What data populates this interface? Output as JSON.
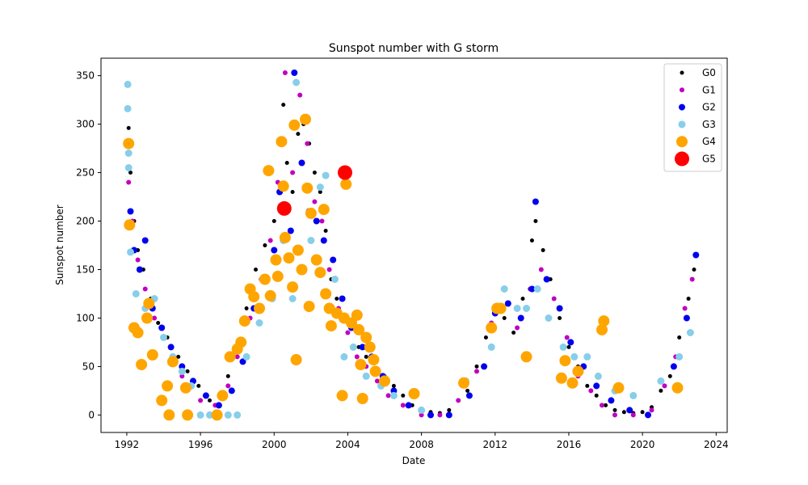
{
  "chart_data": {
    "type": "scatter",
    "title": "Sunspot number with G storm",
    "xlabel": "Date",
    "ylabel": "Sunspot number",
    "xlim": [
      1990.6,
      2024.6
    ],
    "ylim": [
      -18,
      368
    ],
    "x_ticks": [
      "1992",
      "1996",
      "2000",
      "2004",
      "2008",
      "2012",
      "2016",
      "2020",
      "2024"
    ],
    "y_ticks": [
      "0",
      "50",
      "100",
      "150",
      "200",
      "250",
      "300",
      "350"
    ],
    "grid": false,
    "legend_position": "top-right",
    "series": [
      {
        "name": "G0",
        "color": "#000000",
        "marker_size": 2.5,
        "points": [
          [
            1992.1,
            296
          ],
          [
            1992.2,
            250
          ],
          [
            1992.4,
            200
          ],
          [
            1992.6,
            170
          ],
          [
            1992.9,
            150
          ],
          [
            1993.3,
            120
          ],
          [
            1993.7,
            95
          ],
          [
            1994.2,
            80
          ],
          [
            1994.8,
            60
          ],
          [
            1995.3,
            45
          ],
          [
            1995.9,
            30
          ],
          [
            1996.5,
            15
          ],
          [
            1997.0,
            20
          ],
          [
            1997.5,
            40
          ],
          [
            1998.0,
            70
          ],
          [
            1998.5,
            110
          ],
          [
            1999.0,
            150
          ],
          [
            1999.5,
            175
          ],
          [
            2000.0,
            200
          ],
          [
            2000.3,
            280
          ],
          [
            2000.5,
            320
          ],
          [
            2000.7,
            260
          ],
          [
            2001.0,
            230
          ],
          [
            2001.3,
            290
          ],
          [
            2001.6,
            300
          ],
          [
            2001.9,
            280
          ],
          [
            2002.2,
            250
          ],
          [
            2002.5,
            230
          ],
          [
            2002.8,
            190
          ],
          [
            2003.1,
            140
          ],
          [
            2003.4,
            120
          ],
          [
            2003.8,
            100
          ],
          [
            2004.2,
            90
          ],
          [
            2004.6,
            70
          ],
          [
            2005.0,
            60
          ],
          [
            2005.5,
            45
          ],
          [
            2006.0,
            40
          ],
          [
            2006.5,
            30
          ],
          [
            2007.0,
            20
          ],
          [
            2007.5,
            10
          ],
          [
            2008.0,
            5
          ],
          [
            2008.5,
            3
          ],
          [
            2009.0,
            2
          ],
          [
            2009.5,
            5
          ],
          [
            2010.0,
            15
          ],
          [
            2010.5,
            25
          ],
          [
            2011.0,
            50
          ],
          [
            2011.5,
            80
          ],
          [
            2012.0,
            110
          ],
          [
            2012.5,
            100
          ],
          [
            2013.0,
            85
          ],
          [
            2013.5,
            120
          ],
          [
            2014.0,
            180
          ],
          [
            2014.2,
            200
          ],
          [
            2014.6,
            170
          ],
          [
            2015.0,
            140
          ],
          [
            2015.5,
            100
          ],
          [
            2016.0,
            70
          ],
          [
            2016.5,
            50
          ],
          [
            2017.0,
            30
          ],
          [
            2017.5,
            20
          ],
          [
            2018.0,
            10
          ],
          [
            2018.5,
            5
          ],
          [
            2019.0,
            3
          ],
          [
            2019.5,
            2
          ],
          [
            2020.0,
            3
          ],
          [
            2020.5,
            8
          ],
          [
            2021.0,
            25
          ],
          [
            2021.5,
            40
          ],
          [
            2022.0,
            80
          ],
          [
            2022.5,
            120
          ],
          [
            2022.8,
            150
          ]
        ]
      },
      {
        "name": "G1",
        "color": "#c000c0",
        "marker_size": 3,
        "points": [
          [
            1992.1,
            240
          ],
          [
            1992.3,
            200
          ],
          [
            1992.6,
            160
          ],
          [
            1993.0,
            130
          ],
          [
            1993.5,
            100
          ],
          [
            1994.0,
            80
          ],
          [
            1994.5,
            60
          ],
          [
            1995.0,
            40
          ],
          [
            1995.5,
            30
          ],
          [
            1996.0,
            15
          ],
          [
            1996.8,
            10
          ],
          [
            1997.5,
            30
          ],
          [
            1998.0,
            60
          ],
          [
            1998.7,
            100
          ],
          [
            1999.3,
            140
          ],
          [
            1999.8,
            180
          ],
          [
            2000.2,
            240
          ],
          [
            2000.6,
            353
          ],
          [
            2001.0,
            250
          ],
          [
            2001.4,
            330
          ],
          [
            2001.8,
            280
          ],
          [
            2002.2,
            220
          ],
          [
            2002.6,
            200
          ],
          [
            2003.0,
            150
          ],
          [
            2003.5,
            110
          ],
          [
            2004.0,
            85
          ],
          [
            2004.5,
            60
          ],
          [
            2005.0,
            50
          ],
          [
            2005.6,
            35
          ],
          [
            2006.2,
            20
          ],
          [
            2007.0,
            10
          ],
          [
            2008.0,
            0
          ],
          [
            2009.0,
            0
          ],
          [
            2010.0,
            15
          ],
          [
            2011.0,
            45
          ],
          [
            2011.8,
            95
          ],
          [
            2012.4,
            110
          ],
          [
            2013.2,
            90
          ],
          [
            2013.9,
            130
          ],
          [
            2014.5,
            150
          ],
          [
            2015.2,
            120
          ],
          [
            2015.9,
            80
          ],
          [
            2016.5,
            40
          ],
          [
            2017.2,
            25
          ],
          [
            2017.8,
            10
          ],
          [
            2018.5,
            0
          ],
          [
            2019.5,
            0
          ],
          [
            2020.5,
            5
          ],
          [
            2021.2,
            30
          ],
          [
            2021.8,
            60
          ],
          [
            2022.3,
            110
          ],
          [
            2022.7,
            140
          ]
        ]
      },
      {
        "name": "G2",
        "color": "#0000ee",
        "marker_size": 4,
        "points": [
          [
            1992.2,
            210
          ],
          [
            1992.4,
            170
          ],
          [
            1992.7,
            150
          ],
          [
            1993.0,
            180
          ],
          [
            1993.4,
            110
          ],
          [
            1993.9,
            90
          ],
          [
            1994.4,
            70
          ],
          [
            1995.0,
            50
          ],
          [
            1995.6,
            35
          ],
          [
            1996.3,
            20
          ],
          [
            1997.0,
            10
          ],
          [
            1997.7,
            25
          ],
          [
            1998.3,
            55
          ],
          [
            1998.9,
            110
          ],
          [
            1999.4,
            140
          ],
          [
            2000.0,
            170
          ],
          [
            2000.3,
            230
          ],
          [
            2000.9,
            190
          ],
          [
            2001.1,
            353
          ],
          [
            2001.5,
            260
          ],
          [
            2001.9,
            210
          ],
          [
            2002.3,
            200
          ],
          [
            2002.7,
            180
          ],
          [
            2003.2,
            160
          ],
          [
            2003.7,
            120
          ],
          [
            2004.2,
            90
          ],
          [
            2004.8,
            70
          ],
          [
            2005.3,
            60
          ],
          [
            2005.9,
            40
          ],
          [
            2006.5,
            25
          ],
          [
            2007.3,
            10
          ],
          [
            2008.5,
            0
          ],
          [
            2009.5,
            0
          ],
          [
            2010.6,
            20
          ],
          [
            2011.4,
            50
          ],
          [
            2012.0,
            105
          ],
          [
            2012.7,
            115
          ],
          [
            2013.4,
            100
          ],
          [
            2014.0,
            130
          ],
          [
            2014.2,
            220
          ],
          [
            2014.8,
            140
          ],
          [
            2015.5,
            110
          ],
          [
            2016.1,
            75
          ],
          [
            2016.8,
            50
          ],
          [
            2017.5,
            30
          ],
          [
            2018.3,
            15
          ],
          [
            2019.3,
            5
          ],
          [
            2020.3,
            0
          ],
          [
            2021.0,
            35
          ],
          [
            2021.7,
            50
          ],
          [
            2022.4,
            100
          ],
          [
            2022.9,
            165
          ]
        ]
      },
      {
        "name": "G3",
        "color": "#87ceeb",
        "marker_size": 4.5,
        "points": [
          [
            1992.05,
            341
          ],
          [
            1992.05,
            316
          ],
          [
            1992.1,
            270
          ],
          [
            1992.1,
            255
          ],
          [
            1992.2,
            168
          ],
          [
            1992.5,
            125
          ],
          [
            1993.0,
            110
          ],
          [
            1993.5,
            120
          ],
          [
            1994.0,
            80
          ],
          [
            1994.5,
            60
          ],
          [
            1995.0,
            45
          ],
          [
            1995.5,
            30
          ],
          [
            1996.0,
            0
          ],
          [
            1996.5,
            0
          ],
          [
            1997.0,
            0
          ],
          [
            1997.5,
            0
          ],
          [
            1998.0,
            0
          ],
          [
            1998.5,
            60
          ],
          [
            1999.2,
            95
          ],
          [
            1999.9,
            120
          ],
          [
            2000.5,
            180
          ],
          [
            2001.0,
            120
          ],
          [
            2001.2,
            343
          ],
          [
            2001.6,
            150
          ],
          [
            2002.0,
            180
          ],
          [
            2002.5,
            235
          ],
          [
            2002.8,
            247
          ],
          [
            2003.3,
            140
          ],
          [
            2003.8,
            60
          ],
          [
            2004.3,
            70
          ],
          [
            2005.0,
            40
          ],
          [
            2005.8,
            30
          ],
          [
            2006.5,
            20
          ],
          [
            2008.0,
            5
          ],
          [
            2010.4,
            35
          ],
          [
            2011.8,
            70
          ],
          [
            2012.5,
            130
          ],
          [
            2013.2,
            110
          ],
          [
            2013.7,
            110
          ],
          [
            2014.3,
            130
          ],
          [
            2014.9,
            100
          ],
          [
            2015.7,
            70
          ],
          [
            2016.3,
            60
          ],
          [
            2017.0,
            60
          ],
          [
            2017.6,
            40
          ],
          [
            2018.5,
            25
          ],
          [
            2019.5,
            20
          ],
          [
            2021.0,
            35
          ],
          [
            2022.0,
            60
          ],
          [
            2022.6,
            85
          ]
        ]
      },
      {
        "name": "G4",
        "color": "#ffa500",
        "marker_size": 7,
        "points": [
          [
            1992.1,
            280
          ],
          [
            1992.15,
            196
          ],
          [
            1992.4,
            90
          ],
          [
            1992.6,
            85
          ],
          [
            1992.8,
            52
          ],
          [
            1993.1,
            100
          ],
          [
            1993.2,
            115
          ],
          [
            1993.4,
            62
          ],
          [
            1993.9,
            15
          ],
          [
            1994.2,
            30
          ],
          [
            1994.3,
            0
          ],
          [
            1994.5,
            55
          ],
          [
            1995.2,
            28
          ],
          [
            1995.3,
            0
          ],
          [
            1996.9,
            0
          ],
          [
            1997.2,
            20
          ],
          [
            1997.6,
            60
          ],
          [
            1998.0,
            68
          ],
          [
            1998.2,
            75
          ],
          [
            1998.4,
            97
          ],
          [
            1998.7,
            130
          ],
          [
            1998.9,
            122
          ],
          [
            1999.2,
            110
          ],
          [
            1999.5,
            140
          ],
          [
            1999.7,
            252
          ],
          [
            1999.8,
            123
          ],
          [
            2000.1,
            160
          ],
          [
            2000.2,
            143
          ],
          [
            2000.4,
            282
          ],
          [
            2000.5,
            236
          ],
          [
            2000.6,
            183
          ],
          [
            2000.8,
            162
          ],
          [
            2001.0,
            132
          ],
          [
            2001.1,
            299
          ],
          [
            2001.2,
            57
          ],
          [
            2001.3,
            170
          ],
          [
            2001.5,
            150
          ],
          [
            2001.7,
            305
          ],
          [
            2001.8,
            234
          ],
          [
            2001.9,
            112
          ],
          [
            2002.0,
            208
          ],
          [
            2002.3,
            160
          ],
          [
            2002.5,
            147
          ],
          [
            2002.7,
            212
          ],
          [
            2002.8,
            125
          ],
          [
            2003.0,
            110
          ],
          [
            2003.1,
            92
          ],
          [
            2003.4,
            105
          ],
          [
            2003.7,
            20
          ],
          [
            2003.8,
            100
          ],
          [
            2003.9,
            238
          ],
          [
            2004.2,
            95
          ],
          [
            2004.5,
            103
          ],
          [
            2004.6,
            88
          ],
          [
            2004.7,
            52
          ],
          [
            2004.8,
            17
          ],
          [
            2005.0,
            80
          ],
          [
            2005.2,
            70
          ],
          [
            2005.4,
            57
          ],
          [
            2005.5,
            45
          ],
          [
            2006.0,
            35
          ],
          [
            2007.6,
            22
          ],
          [
            2010.3,
            33
          ],
          [
            2011.8,
            90
          ],
          [
            2012.1,
            110
          ],
          [
            2012.3,
            110
          ],
          [
            2013.7,
            60
          ],
          [
            2015.6,
            38
          ],
          [
            2015.8,
            56
          ],
          [
            2016.2,
            33
          ],
          [
            2016.5,
            45
          ],
          [
            2017.8,
            88
          ],
          [
            2017.9,
            97
          ],
          [
            2018.7,
            28
          ],
          [
            2021.9,
            28
          ]
        ]
      },
      {
        "name": "G5",
        "color": "#ff0000",
        "marker_size": 9,
        "points": [
          [
            2000.55,
            213
          ],
          [
            2003.85,
            250
          ]
        ]
      }
    ]
  }
}
